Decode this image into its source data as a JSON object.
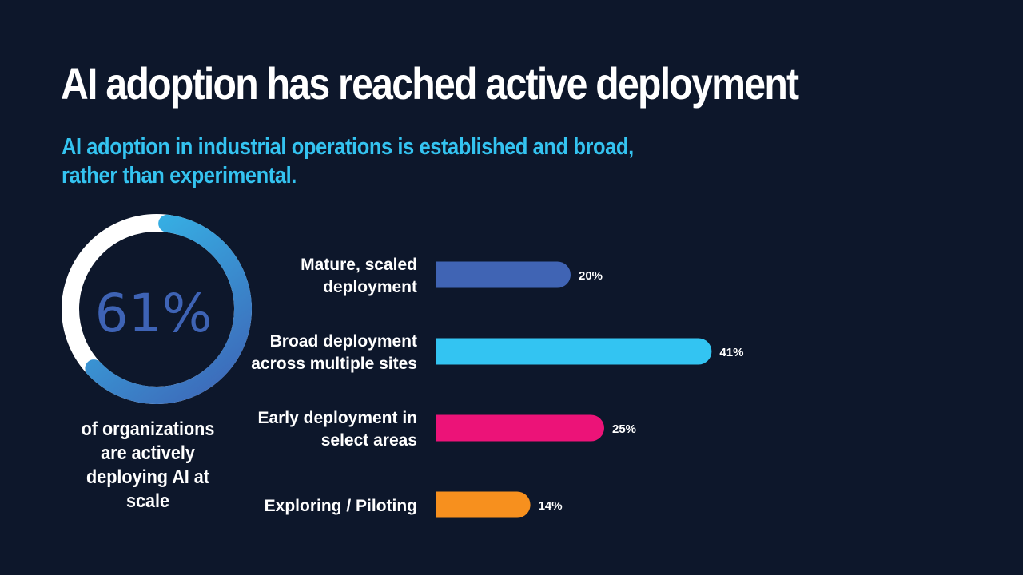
{
  "slide": {
    "title": "AI adoption has reached active deployment",
    "subtitle": "AI adoption in industrial operations is established and broad, rather than experimental."
  },
  "highlight": {
    "value_label": "61%",
    "fraction": 0.61,
    "caption": "of organizations are actively deploying AI at scale",
    "ring_colors": [
      "#3e63b5",
      "#34c3f0"
    ],
    "track_color": "#ffffff",
    "number_color": "#3e63b5"
  },
  "chart_data": {
    "type": "bar",
    "orientation": "horizontal",
    "categories": [
      [
        "Mature, scaled",
        "deployment"
      ],
      [
        "Broad deployment",
        "across multiple sites"
      ],
      [
        "Early deployment in",
        "select areas"
      ],
      [
        "Exploring / Piloting"
      ]
    ],
    "values": [
      20,
      41,
      25,
      14
    ],
    "value_labels": [
      "20%",
      "41%",
      "25%",
      "14%"
    ],
    "colors": [
      "#4064b4",
      "#33c4f2",
      "#ec1378",
      "#f7901e"
    ],
    "grid": false,
    "legend": "none"
  }
}
